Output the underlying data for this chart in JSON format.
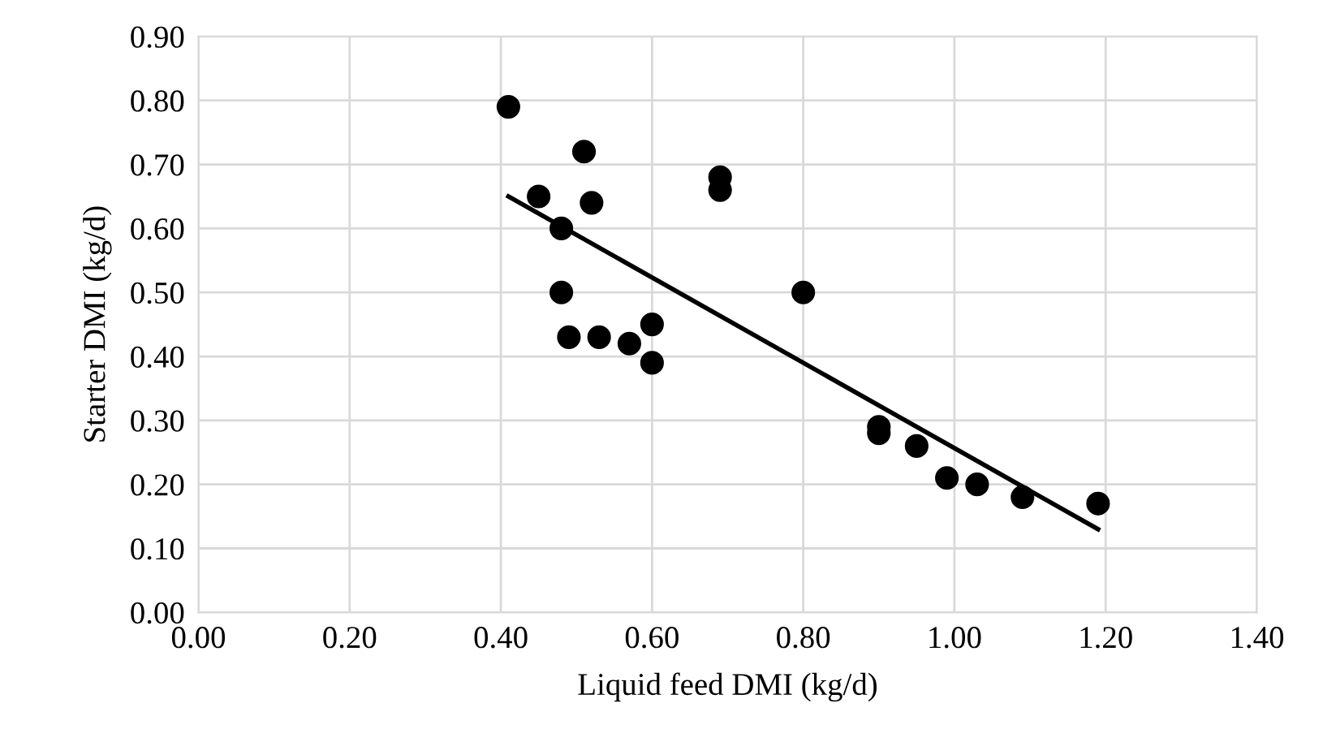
{
  "chart_data": {
    "type": "scatter",
    "xlabel": "Liquid feed DMI (kg/d)",
    "ylabel": "Starter DMI (kg/d)",
    "xlim": [
      0,
      1.4
    ],
    "ylim": [
      0,
      0.9
    ],
    "xticks": [
      {
        "value": 0,
        "label": "0.00"
      },
      {
        "value": 0.2,
        "label": "0.20"
      },
      {
        "value": 0.4,
        "label": "0.40"
      },
      {
        "value": 0.6,
        "label": "0.60"
      },
      {
        "value": 0.8,
        "label": "0.80"
      },
      {
        "value": 1.0,
        "label": "1.00"
      },
      {
        "value": 1.2,
        "label": "1.20"
      },
      {
        "value": 1.4,
        "label": "1.40"
      }
    ],
    "yticks": [
      {
        "value": 0,
        "label": "0.00"
      },
      {
        "value": 0.1,
        "label": "0.10"
      },
      {
        "value": 0.2,
        "label": "0.20"
      },
      {
        "value": 0.3,
        "label": "0.30"
      },
      {
        "value": 0.4,
        "label": "0.40"
      },
      {
        "value": 0.5,
        "label": "0.50"
      },
      {
        "value": 0.6,
        "label": "0.60"
      },
      {
        "value": 0.7,
        "label": "0.70"
      },
      {
        "value": 0.8,
        "label": "0.80"
      },
      {
        "value": 0.9,
        "label": "0.90"
      }
    ],
    "grid": true,
    "series": [
      {
        "marker": "circle",
        "color": "#000000",
        "x": [
          0.41,
          0.45,
          0.48,
          0.48,
          0.49,
          0.51,
          0.52,
          0.53,
          0.57,
          0.6,
          0.6,
          0.69,
          0.69,
          0.8,
          0.9,
          0.9,
          0.95,
          0.99,
          1.03,
          1.09,
          1.19
        ],
        "values": [
          0.79,
          0.65,
          0.6,
          0.5,
          0.43,
          0.72,
          0.64,
          0.43,
          0.42,
          0.45,
          0.39,
          0.68,
          0.66,
          0.5,
          0.29,
          0.28,
          0.26,
          0.21,
          0.2,
          0.18,
          0.17
        ]
      },
      {
        "type": "line",
        "color": "#000000",
        "x": [
          0.41,
          1.19
        ],
        "values": [
          0.65,
          0.13
        ]
      }
    ]
  }
}
